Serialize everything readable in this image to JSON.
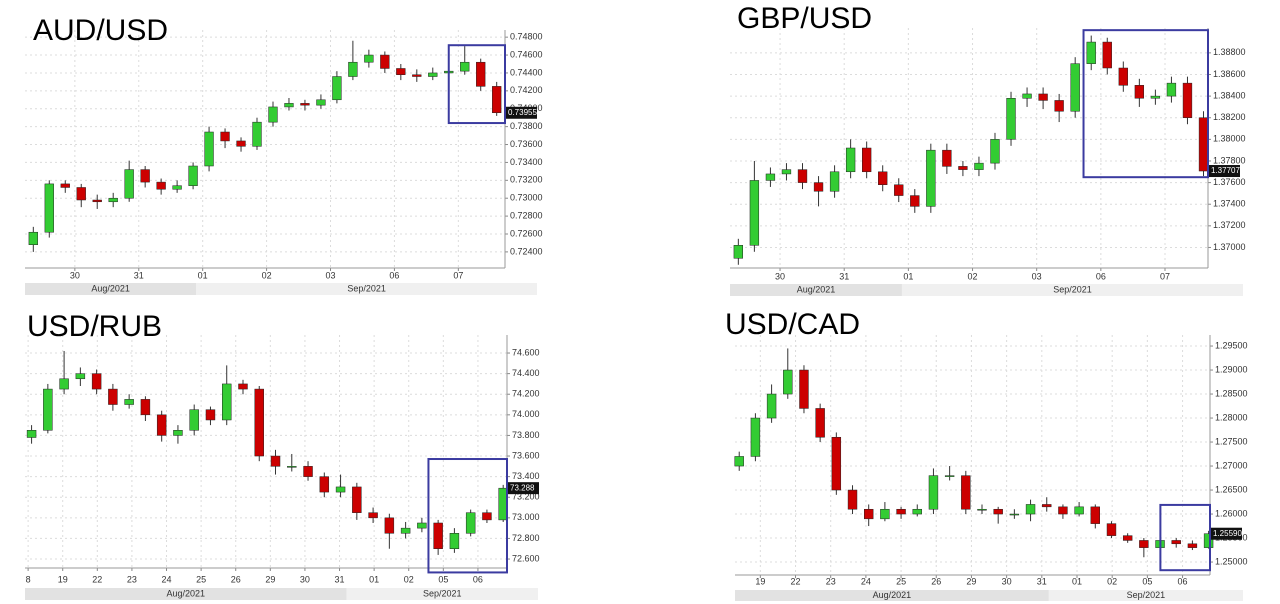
{
  "chart_data": [
    {
      "type": "candlestick",
      "title": "AUD/USD",
      "up_color": "#33cc33",
      "down_color": "#cc0000",
      "grid": true,
      "x": [
        0.35,
        0.6,
        0.85,
        1.1,
        1.35,
        1.6,
        1.85,
        2.1,
        2.35,
        2.6,
        2.85,
        3.1,
        3.35,
        3.6,
        3.85,
        4.1,
        4.35,
        4.6,
        4.85,
        5.1,
        5.35,
        5.6,
        5.85,
        6.1,
        6.35,
        6.6,
        6.85,
        7.1,
        7.35,
        7.6
      ],
      "open": [
        0.7248,
        0.7262,
        0.7316,
        0.7312,
        0.7298,
        0.7296,
        0.73,
        0.7332,
        0.7318,
        0.731,
        0.7314,
        0.7336,
        0.7374,
        0.7364,
        0.7358,
        0.7385,
        0.7402,
        0.7406,
        0.7404,
        0.741,
        0.7436,
        0.7452,
        0.746,
        0.7445,
        0.7438,
        0.7436,
        0.744,
        0.7442,
        0.7452,
        0.7425
      ],
      "high": [
        0.7268,
        0.732,
        0.732,
        0.7316,
        0.7304,
        0.7306,
        0.7342,
        0.7336,
        0.7322,
        0.732,
        0.734,
        0.738,
        0.7378,
        0.7368,
        0.739,
        0.7408,
        0.7412,
        0.741,
        0.7416,
        0.7442,
        0.7476,
        0.7466,
        0.7464,
        0.745,
        0.7444,
        0.7446,
        0.7448,
        0.747,
        0.7456,
        0.743
      ],
      "low": [
        0.724,
        0.7256,
        0.7306,
        0.729,
        0.7288,
        0.729,
        0.7296,
        0.7312,
        0.7304,
        0.7306,
        0.731,
        0.733,
        0.7356,
        0.7352,
        0.7354,
        0.738,
        0.7398,
        0.7398,
        0.74,
        0.7406,
        0.7432,
        0.7446,
        0.744,
        0.7432,
        0.743,
        0.7432,
        0.7436,
        0.7438,
        0.742,
        0.7392
      ],
      "close": [
        0.7262,
        0.7316,
        0.7312,
        0.7298,
        0.7296,
        0.73,
        0.7332,
        0.7318,
        0.731,
        0.7314,
        0.7336,
        0.7374,
        0.7364,
        0.7358,
        0.7385,
        0.7402,
        0.7406,
        0.7404,
        0.741,
        0.7436,
        0.7452,
        0.746,
        0.7445,
        0.7438,
        0.7436,
        0.744,
        0.7442,
        0.7452,
        0.7425,
        0.73955
      ],
      "xlim": [
        0.22,
        7.73
      ],
      "ylim": [
        0.7222,
        0.7488
      ],
      "xticks": [
        {
          "value": 1,
          "label": "30"
        },
        {
          "value": 2,
          "label": "31"
        },
        {
          "value": 3,
          "label": "01"
        },
        {
          "value": 4,
          "label": "02"
        },
        {
          "value": 5,
          "label": "03"
        },
        {
          "value": 6,
          "label": "06"
        },
        {
          "value": 7,
          "label": "07"
        }
      ],
      "yticks": [
        {
          "value": 0.724,
          "label": "0.72400"
        },
        {
          "value": 0.726,
          "label": "0.72600"
        },
        {
          "value": 0.728,
          "label": "0.72800"
        },
        {
          "value": 0.73,
          "label": "0.73000"
        },
        {
          "value": 0.732,
          "label": "0.73200"
        },
        {
          "value": 0.734,
          "label": "0.73400"
        },
        {
          "value": 0.736,
          "label": "0.73600"
        },
        {
          "value": 0.738,
          "label": "0.73800"
        },
        {
          "value": 0.74,
          "label": "0.74000"
        },
        {
          "value": 0.742,
          "label": "0.74200"
        },
        {
          "value": 0.744,
          "label": "0.74400"
        },
        {
          "value": 0.746,
          "label": "0.74600"
        },
        {
          "value": 0.748,
          "label": "0.74800"
        }
      ],
      "months": [
        {
          "value": 0.22,
          "label": "Aug/2021"
        },
        {
          "value": 2.9,
          "label": "Sep/2021"
        }
      ],
      "last": 0.73955,
      "highlight": {
        "xlim": [
          6.85,
          7.73
        ],
        "ylim": [
          0.7384,
          0.7471
        ],
        "color": "#3b3ba0"
      }
    },
    {
      "type": "candlestick",
      "title": "GBP/USD",
      "up_color": "#33cc33",
      "down_color": "#cc0000",
      "grid": true,
      "x": [
        0.35,
        0.6,
        0.85,
        1.1,
        1.35,
        1.6,
        1.85,
        2.1,
        2.35,
        2.6,
        2.85,
        3.1,
        3.35,
        3.6,
        3.85,
        4.1,
        4.35,
        4.6,
        4.85,
        5.1,
        5.35,
        5.6,
        5.85,
        6.1,
        6.35,
        6.6,
        6.85,
        7.1,
        7.35,
        7.6
      ],
      "open": [
        1.369,
        1.3702,
        1.3762,
        1.3768,
        1.3772,
        1.376,
        1.3752,
        1.377,
        1.3792,
        1.377,
        1.3758,
        1.3748,
        1.3738,
        1.379,
        1.3775,
        1.3772,
        1.3778,
        1.38,
        1.3838,
        1.3842,
        1.3836,
        1.3826,
        1.387,
        1.389,
        1.3866,
        1.385,
        1.3838,
        1.384,
        1.3852,
        1.382
      ],
      "high": [
        1.3708,
        1.378,
        1.3774,
        1.3778,
        1.3778,
        1.3766,
        1.3776,
        1.38,
        1.3798,
        1.3776,
        1.3764,
        1.3754,
        1.3796,
        1.3796,
        1.378,
        1.3784,
        1.3806,
        1.3844,
        1.3848,
        1.3848,
        1.3842,
        1.3876,
        1.3896,
        1.3894,
        1.3872,
        1.3856,
        1.3846,
        1.3858,
        1.3858,
        1.3826
      ],
      "low": [
        1.3684,
        1.3696,
        1.3756,
        1.3762,
        1.3754,
        1.3738,
        1.3746,
        1.3764,
        1.3764,
        1.3752,
        1.3742,
        1.3732,
        1.3732,
        1.3768,
        1.3766,
        1.3766,
        1.3772,
        1.3794,
        1.383,
        1.3828,
        1.3816,
        1.382,
        1.3864,
        1.386,
        1.3844,
        1.383,
        1.3832,
        1.3834,
        1.3814,
        1.3766
      ],
      "close": [
        1.3702,
        1.3762,
        1.3768,
        1.3772,
        1.376,
        1.3752,
        1.377,
        1.3792,
        1.377,
        1.3758,
        1.3748,
        1.3738,
        1.379,
        1.3775,
        1.3772,
        1.3778,
        1.38,
        1.3838,
        1.3842,
        1.3836,
        1.3826,
        1.387,
        1.389,
        1.3866,
        1.385,
        1.3838,
        1.384,
        1.3852,
        1.382,
        1.37707
      ],
      "xlim": [
        0.22,
        7.67
      ],
      "ylim": [
        1.3681,
        1.3903
      ],
      "xticks": [
        {
          "value": 1,
          "label": "30"
        },
        {
          "value": 2,
          "label": "31"
        },
        {
          "value": 3,
          "label": "01"
        },
        {
          "value": 4,
          "label": "02"
        },
        {
          "value": 5,
          "label": "03"
        },
        {
          "value": 6,
          "label": "06"
        },
        {
          "value": 7,
          "label": "07"
        }
      ],
      "yticks": [
        {
          "value": 1.37,
          "label": "1.37000"
        },
        {
          "value": 1.372,
          "label": "1.37200"
        },
        {
          "value": 1.374,
          "label": "1.37400"
        },
        {
          "value": 1.376,
          "label": "1.37600"
        },
        {
          "value": 1.378,
          "label": "1.37800"
        },
        {
          "value": 1.38,
          "label": "1.38000"
        },
        {
          "value": 1.382,
          "label": "1.38200"
        },
        {
          "value": 1.384,
          "label": "1.38400"
        },
        {
          "value": 1.386,
          "label": "1.38600"
        },
        {
          "value": 1.388,
          "label": "1.38800"
        }
      ],
      "months": [
        {
          "value": 0.22,
          "label": "Aug/2021"
        },
        {
          "value": 2.9,
          "label": "Sep/2021"
        }
      ],
      "last": 1.37707,
      "highlight": {
        "xlim": [
          5.73,
          7.67
        ],
        "ylim": [
          1.3765,
          1.3901
        ],
        "color": "#3b3ba0"
      }
    },
    {
      "type": "candlestick",
      "title": "USD/RUB",
      "up_color": "#33cc33",
      "down_color": "#cc0000",
      "grid": true,
      "x": [
        0.1,
        0.57,
        1.04,
        1.51,
        1.98,
        2.45,
        2.92,
        3.39,
        3.86,
        4.33,
        4.8,
        5.27,
        5.74,
        6.21,
        6.68,
        7.15,
        7.62,
        8.09,
        8.56,
        9.03,
        9.5,
        9.97,
        10.44,
        10.91,
        11.38,
        11.85,
        12.32,
        12.79,
        13.26,
        13.73
      ],
      "open": [
        73.78,
        73.85,
        74.25,
        74.35,
        74.4,
        74.25,
        74.1,
        74.15,
        74.0,
        73.8,
        73.85,
        74.05,
        73.95,
        74.3,
        74.25,
        73.6,
        73.5,
        73.5,
        73.4,
        73.25,
        73.3,
        73.05,
        73.0,
        72.85,
        72.9,
        72.95,
        72.7,
        72.85,
        73.05,
        72.98
      ],
      "high": [
        73.9,
        74.3,
        74.62,
        74.46,
        74.44,
        74.3,
        74.2,
        74.18,
        74.04,
        73.9,
        74.1,
        74.08,
        74.48,
        74.34,
        74.28,
        73.66,
        73.62,
        73.55,
        73.44,
        73.42,
        73.34,
        73.1,
        73.04,
        72.96,
        73.0,
        72.98,
        72.9,
        73.08,
        73.08,
        73.32
      ],
      "low": [
        73.72,
        73.82,
        74.2,
        74.28,
        74.2,
        74.04,
        74.06,
        73.94,
        73.74,
        73.72,
        73.8,
        73.9,
        73.9,
        74.2,
        73.55,
        73.42,
        73.45,
        73.36,
        73.2,
        73.2,
        72.98,
        72.95,
        72.7,
        72.8,
        72.86,
        72.64,
        72.66,
        72.82,
        72.95,
        72.96
      ],
      "close": [
        73.85,
        74.25,
        74.35,
        74.4,
        74.25,
        74.1,
        74.15,
        74.0,
        73.8,
        73.85,
        74.05,
        73.95,
        74.3,
        74.25,
        73.6,
        73.5,
        73.5,
        73.4,
        73.25,
        73.3,
        73.05,
        73.0,
        72.85,
        72.9,
        72.95,
        72.7,
        72.85,
        73.05,
        72.98,
        73.288
      ],
      "xlim": [
        -0.09,
        13.84
      ],
      "ylim": [
        72.513,
        74.775
      ],
      "xticks": [
        {
          "value": 0,
          "label": "8"
        },
        {
          "value": 1,
          "label": "19"
        },
        {
          "value": 2,
          "label": "22"
        },
        {
          "value": 3,
          "label": "23"
        },
        {
          "value": 4,
          "label": "24"
        },
        {
          "value": 5,
          "label": "25"
        },
        {
          "value": 6,
          "label": "26"
        },
        {
          "value": 7,
          "label": "29"
        },
        {
          "value": 8,
          "label": "30"
        },
        {
          "value": 9,
          "label": "31"
        },
        {
          "value": 10,
          "label": "01"
        },
        {
          "value": 11,
          "label": "02"
        },
        {
          "value": 12,
          "label": "05"
        },
        {
          "value": 13,
          "label": "06"
        }
      ],
      "yticks": [
        {
          "value": 72.6,
          "label": "72.600"
        },
        {
          "value": 72.8,
          "label": "72.800"
        },
        {
          "value": 73,
          "label": "73.000"
        },
        {
          "value": 73.2,
          "label": "73.200"
        },
        {
          "value": 73.4,
          "label": "73.400"
        },
        {
          "value": 73.6,
          "label": "73.600"
        },
        {
          "value": 73.8,
          "label": "73.800"
        },
        {
          "value": 74,
          "label": "74.000"
        },
        {
          "value": 74.2,
          "label": "74.200"
        },
        {
          "value": 74.4,
          "label": "74.400"
        },
        {
          "value": 74.6,
          "label": "74.600"
        }
      ],
      "months": [
        {
          "value": -0.09,
          "label": "Aug/2021"
        },
        {
          "value": 9.2,
          "label": "Sep/2021"
        }
      ],
      "last": 73.288,
      "highlight": {
        "xlim": [
          11.57,
          13.84
        ],
        "ylim": [
          72.47,
          73.571
        ],
        "color": "#3b3ba0"
      }
    },
    {
      "type": "candlestick",
      "title": "USD/CAD",
      "up_color": "#33cc33",
      "down_color": "#cc0000",
      "grid": true,
      "x": [
        -0.6,
        -0.14,
        0.32,
        0.78,
        1.24,
        1.7,
        2.16,
        2.62,
        3.08,
        3.54,
        4.0,
        4.46,
        4.92,
        5.38,
        5.84,
        6.3,
        6.76,
        7.22,
        7.68,
        8.14,
        8.6,
        9.06,
        9.52,
        9.98,
        10.44,
        10.9,
        11.36,
        11.82,
        12.28,
        12.74
      ],
      "open": [
        1.27,
        1.272,
        1.28,
        1.285,
        1.29,
        1.282,
        1.276,
        1.265,
        1.261,
        1.259,
        1.261,
        1.26,
        1.261,
        1.268,
        1.268,
        1.261,
        1.261,
        1.26,
        1.26,
        1.262,
        1.2615,
        1.26,
        1.2615,
        1.258,
        1.2555,
        1.2545,
        1.253,
        1.2545,
        1.2538,
        1.253
      ],
      "high": [
        1.273,
        1.281,
        1.287,
        1.2945,
        1.291,
        1.283,
        1.277,
        1.266,
        1.262,
        1.2625,
        1.2615,
        1.262,
        1.2695,
        1.27,
        1.269,
        1.262,
        1.2615,
        1.261,
        1.263,
        1.2635,
        1.262,
        1.2625,
        1.262,
        1.2585,
        1.256,
        1.255,
        1.2555,
        1.255,
        1.2545,
        1.2565
      ],
      "low": [
        1.269,
        1.271,
        1.279,
        1.284,
        1.281,
        1.275,
        1.264,
        1.26,
        1.2575,
        1.2585,
        1.259,
        1.2595,
        1.26,
        1.267,
        1.26,
        1.26,
        1.258,
        1.259,
        1.2585,
        1.2605,
        1.259,
        1.2595,
        1.257,
        1.255,
        1.254,
        1.251,
        1.2525,
        1.253,
        1.2525,
        1.2528
      ],
      "close": [
        1.272,
        1.28,
        1.285,
        1.29,
        1.282,
        1.276,
        1.265,
        1.261,
        1.259,
        1.261,
        1.26,
        1.261,
        1.268,
        1.268,
        1.261,
        1.261,
        1.26,
        1.26,
        1.262,
        1.2615,
        1.26,
        1.2615,
        1.258,
        1.2555,
        1.2545,
        1.253,
        1.2545,
        1.2538,
        1.253,
        1.2559
      ],
      "xlim": [
        -0.72,
        12.78
      ],
      "ylim": [
        1.2473,
        1.2973
      ],
      "xticks": [
        {
          "value": 0,
          "label": "19"
        },
        {
          "value": 1,
          "label": "22"
        },
        {
          "value": 2,
          "label": "23"
        },
        {
          "value": 3,
          "label": "24"
        },
        {
          "value": 4,
          "label": "25"
        },
        {
          "value": 5,
          "label": "26"
        },
        {
          "value": 6,
          "label": "29"
        },
        {
          "value": 7,
          "label": "30"
        },
        {
          "value": 8,
          "label": "31"
        },
        {
          "value": 9,
          "label": "01"
        },
        {
          "value": 10,
          "label": "02"
        },
        {
          "value": 11,
          "label": "05"
        },
        {
          "value": 12,
          "label": "06"
        }
      ],
      "yticks": [
        {
          "value": 1.25,
          "label": "1.25000"
        },
        {
          "value": 1.255,
          "label": "1.25500"
        },
        {
          "value": 1.26,
          "label": "1.26000"
        },
        {
          "value": 1.265,
          "label": "1.26500"
        },
        {
          "value": 1.27,
          "label": "1.27000"
        },
        {
          "value": 1.275,
          "label": "1.27500"
        },
        {
          "value": 1.28,
          "label": "1.28000"
        },
        {
          "value": 1.285,
          "label": "1.28500"
        },
        {
          "value": 1.29,
          "label": "1.29000"
        },
        {
          "value": 1.295,
          "label": "1.29500"
        }
      ],
      "months": [
        {
          "value": -0.72,
          "label": "Aug/2021"
        },
        {
          "value": 8.2,
          "label": "Sep/2021"
        }
      ],
      "last": {
        "value": 1.2559,
        "label": "1.25590"
      },
      "highlight": {
        "xlim": [
          11.37,
          12.78
        ],
        "ylim": [
          1.2483,
          1.2619
        ],
        "color": "#3b3ba0"
      }
    }
  ]
}
